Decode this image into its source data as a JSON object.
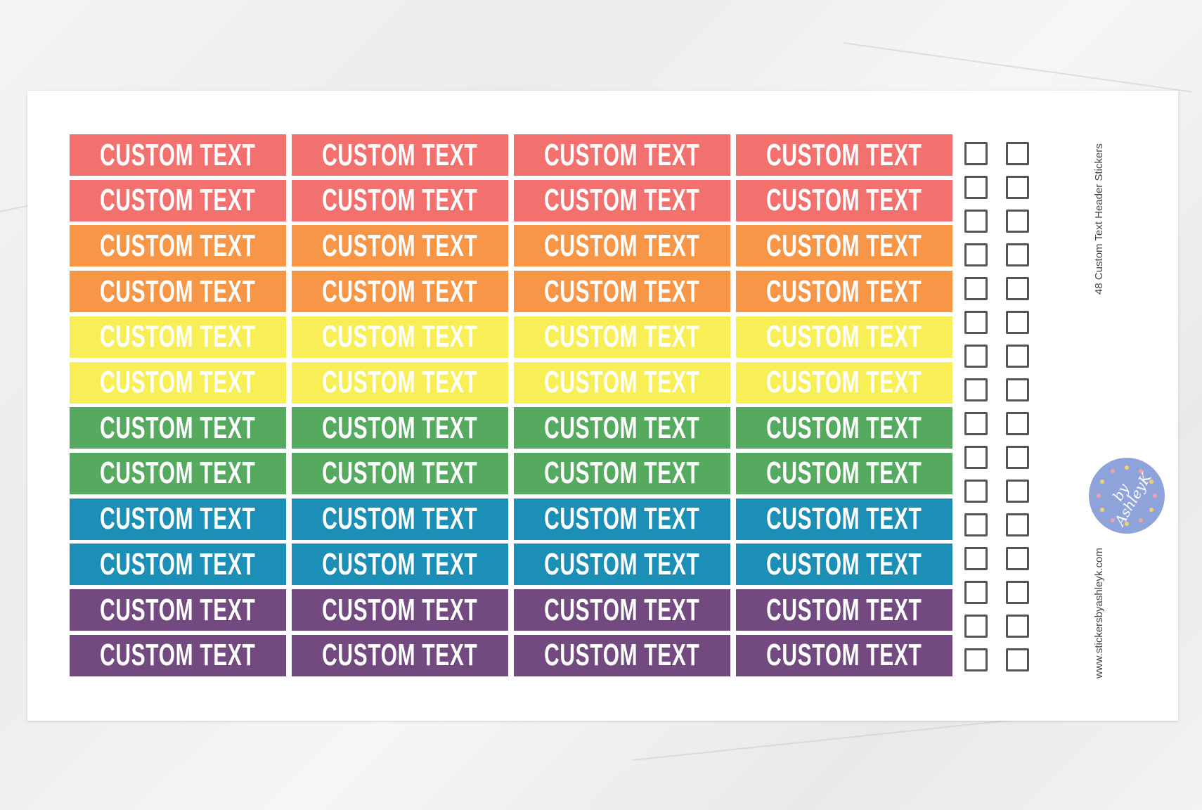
{
  "sheet": {
    "title": "48 Custom Text Header  Stickers",
    "website": "www.stickersbyashleyk.com",
    "logo_text": "by AshleyK"
  },
  "sticker_label": "CUSTOM TEXT",
  "columns": 4,
  "rows": [
    {
      "color": "#f2706d"
    },
    {
      "color": "#f2706d"
    },
    {
      "color": "#f79646"
    },
    {
      "color": "#f79646"
    },
    {
      "color": "#f8ef57"
    },
    {
      "color": "#f8ef57"
    },
    {
      "color": "#55aa60"
    },
    {
      "color": "#55aa60"
    },
    {
      "color": "#1c8fb6"
    },
    {
      "color": "#1c8fb6"
    },
    {
      "color": "#734a7f"
    },
    {
      "color": "#734a7f"
    }
  ],
  "checkbox_rows": 16,
  "checkbox_columns": 2,
  "logo_color": "#8fa3db"
}
